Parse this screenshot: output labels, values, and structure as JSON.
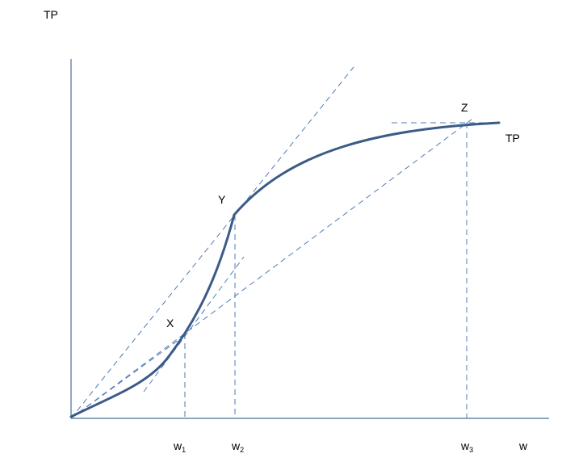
{
  "diagram": {
    "y_axis_label": "TP",
    "x_axis_label": "w",
    "curve_label": "TP",
    "points": {
      "x": "X",
      "y": "Y",
      "z": "Z"
    },
    "x_ticks": [
      {
        "base": "w",
        "sub": "1"
      },
      {
        "base": "w",
        "sub": "2"
      },
      {
        "base": "w",
        "sub": "3"
      }
    ],
    "colors": {
      "axis": "#4a6f9a",
      "curve": "#3b5b87",
      "guide": "#4f7bb3"
    }
  }
}
